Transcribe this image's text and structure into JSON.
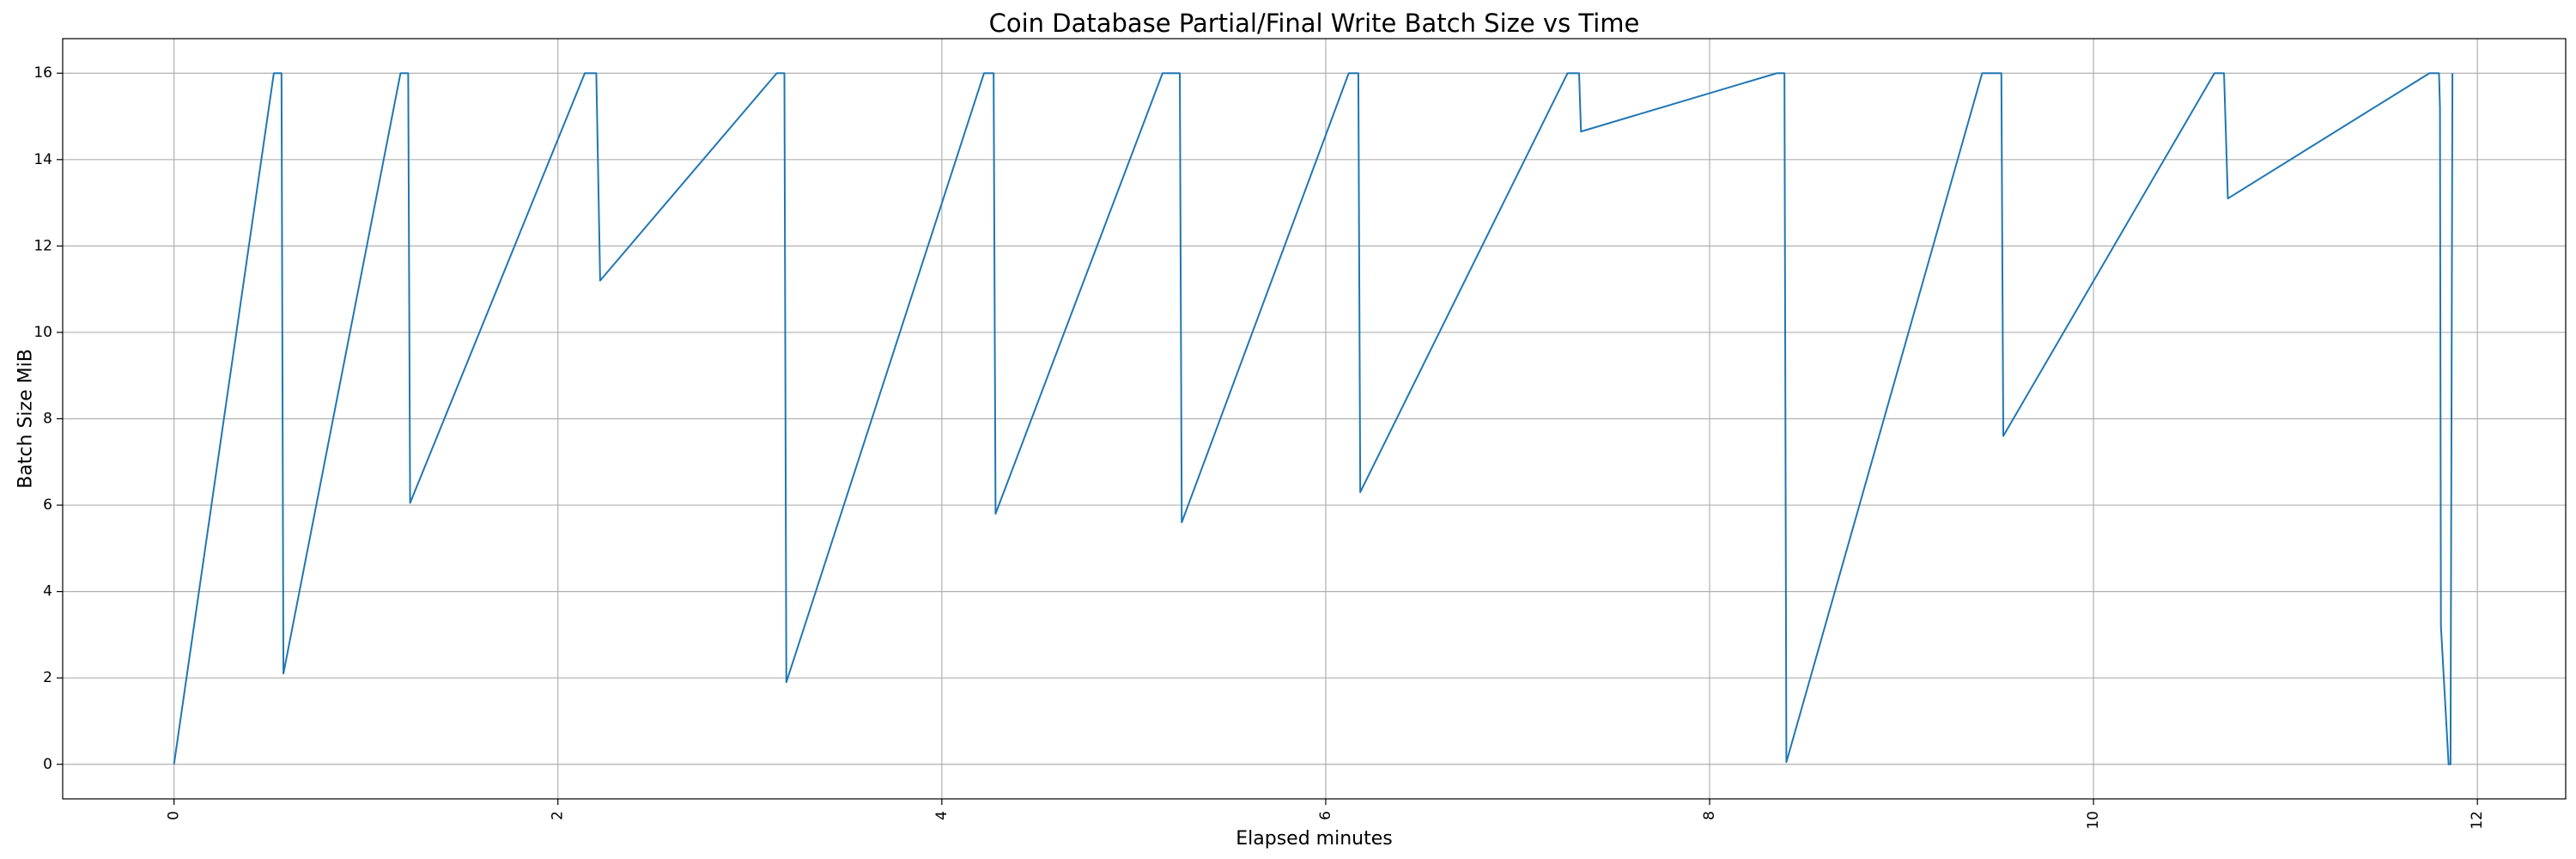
{
  "chart_data": {
    "type": "line",
    "title": "Coin Database Partial/Final Write Batch Size vs Time",
    "xlabel": "Elapsed minutes",
    "ylabel": "Batch Size MiB",
    "xlim": [
      -0.58,
      12.46
    ],
    "ylim": [
      -0.8,
      16.8
    ],
    "xticks": [
      0,
      2,
      4,
      6,
      8,
      10,
      12
    ],
    "yticks": [
      0,
      2,
      4,
      6,
      8,
      10,
      12,
      14,
      16
    ],
    "grid": true,
    "line_color": "#1f77b4",
    "series": [
      {
        "x": [
          0.0,
          0.52,
          0.56,
          0.57,
          1.18,
          1.22,
          1.23,
          2.14,
          2.2,
          2.22,
          3.14,
          3.18,
          3.19,
          4.22,
          4.27,
          4.28,
          5.15,
          5.24,
          5.25,
          6.12,
          6.17,
          6.18,
          7.26,
          7.32,
          7.33,
          8.35,
          8.39,
          8.4,
          9.42,
          9.52,
          9.53,
          10.63,
          10.68,
          10.7,
          11.75,
          11.8,
          11.805,
          11.81,
          11.83,
          11.85,
          11.86,
          11.865,
          11.87
        ],
        "y": [
          0.0,
          16.0,
          16.0,
          2.1,
          16.0,
          16.0,
          6.05,
          16.0,
          16.0,
          11.2,
          16.0,
          16.0,
          1.9,
          16.0,
          16.0,
          5.8,
          16.0,
          16.0,
          5.6,
          16.0,
          16.0,
          6.3,
          16.0,
          16.0,
          14.65,
          16.0,
          16.0,
          0.05,
          16.0,
          16.0,
          7.6,
          16.0,
          16.0,
          13.1,
          16.0,
          16.0,
          15.2,
          3.2,
          1.6,
          0.0,
          0.0,
          8.0,
          16.0
        ]
      }
    ]
  }
}
